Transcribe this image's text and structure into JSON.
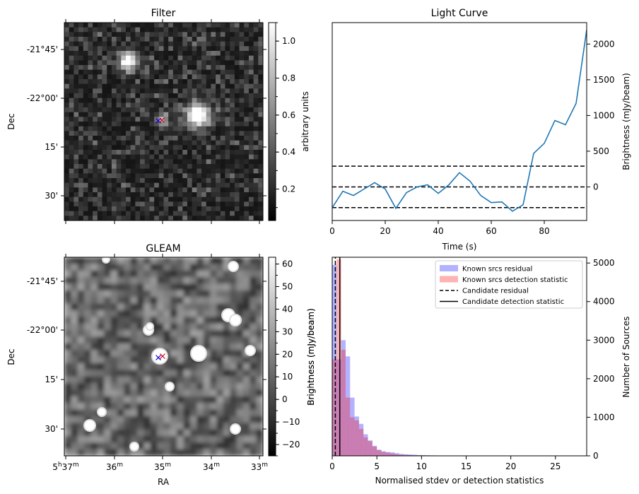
{
  "panels": {
    "filter": {
      "title": "Filter",
      "ylabel": "Dec",
      "dec_ticks": [
        "-21°45'",
        "-22°00'",
        "15'",
        "30'"
      ],
      "colorbar_label": "arbitrary units",
      "colorbar_ticks": [
        "1.0",
        "0.8",
        "0.6",
        "0.4",
        "0.2"
      ],
      "colorbar_range": [
        0.03,
        1.1
      ],
      "cmap": "grayscale"
    },
    "gleam": {
      "title": "GLEAM",
      "ylabel": "Dec",
      "xlabel": "RA",
      "dec_ticks": [
        "-21°45'",
        "-22°00'",
        "15'",
        "30'"
      ],
      "ra_ticks": [
        {
          "h": "5",
          "hs": "h",
          "m": "37",
          "ms": "m"
        },
        {
          "h": "",
          "hs": "",
          "m": "36",
          "ms": "m"
        },
        {
          "h": "",
          "hs": "",
          "m": "35",
          "ms": "m"
        },
        {
          "h": "",
          "hs": "",
          "m": "34",
          "ms": "m"
        },
        {
          "h": "",
          "hs": "",
          "m": "33",
          "ms": "m"
        }
      ],
      "colorbar_label": "Brightness (mJy/beam)",
      "colorbar_ticks": [
        "60",
        "50",
        "40",
        "30",
        "20",
        "10",
        "0",
        "−10",
        "−20"
      ],
      "colorbar_range": [
        -25,
        63
      ],
      "cmap": "grayscale"
    },
    "markers": {
      "red": "#e00000",
      "blue": "#0000e0",
      "symbol": "x"
    }
  },
  "chart_data": [
    {
      "type": "line",
      "title": "Light Curve",
      "xlabel": "Time (s)",
      "ylabel": "Brightness (mJy/beam)",
      "xlim": [
        0,
        96
      ],
      "ylim": [
        -470,
        2300
      ],
      "xticks": [
        0,
        20,
        40,
        60,
        80
      ],
      "yticks": [
        0,
        500,
        1000,
        1500,
        2000
      ],
      "grid": false,
      "color": "#1f77b4",
      "x": [
        0,
        4,
        8,
        12,
        16,
        20,
        24,
        28,
        32,
        36,
        40,
        44,
        48,
        52,
        56,
        60,
        64,
        68,
        72,
        76,
        80,
        84,
        88,
        92,
        96
      ],
      "y": [
        -290,
        -60,
        -120,
        -30,
        60,
        -30,
        -300,
        -80,
        0,
        30,
        -90,
        30,
        200,
        80,
        -120,
        -220,
        -210,
        -340,
        -250,
        470,
        610,
        930,
        870,
        1170,
        2200
      ],
      "hlines": [
        {
          "y": 290,
          "style": "dashed"
        },
        {
          "y": 0,
          "style": "dashed"
        },
        {
          "y": -290,
          "style": "dashed"
        }
      ]
    },
    {
      "type": "bar",
      "subtype": "histogram",
      "xlabel": "Normalised stdev or detection statistics",
      "ylabel": "Number of Sources",
      "left_axis_label": "Brightness (mJy/beam)",
      "xlim": [
        0,
        28.5
      ],
      "ylim": [
        0,
        5150
      ],
      "xticks": [
        0,
        5,
        10,
        15,
        20,
        25
      ],
      "yticks": [
        0,
        1000,
        2000,
        3000,
        4000,
        5000
      ],
      "legend_position": "top-right",
      "bin_width": 0.5,
      "series": [
        {
          "name": "Known srcs residual",
          "color": "#0000ff",
          "alpha": 0.3,
          "values": [
            4950,
            2500,
            3000,
            2580,
            1510,
            1020,
            830,
            560,
            400,
            260,
            160,
            120,
            100,
            90,
            70,
            50,
            40,
            35,
            30,
            20,
            20,
            15,
            12,
            10,
            8,
            8,
            6,
            5,
            5,
            4
          ]
        },
        {
          "name": "Known srcs detection statistic",
          "color": "#ff0000",
          "alpha": 0.3,
          "values": [
            2500,
            5100,
            2750,
            1510,
            1000,
            920,
            700,
            480,
            380,
            240,
            150,
            100,
            80,
            60,
            40,
            30,
            25,
            20,
            15,
            15,
            10,
            10,
            8,
            8,
            6,
            6,
            5,
            5,
            4,
            4
          ]
        }
      ],
      "vlines": [
        {
          "name": "Candidate residual",
          "x": 0.35,
          "style": "dashed"
        },
        {
          "name": "Candidate detection statistic",
          "x": 0.85,
          "style": "solid"
        }
      ]
    }
  ]
}
